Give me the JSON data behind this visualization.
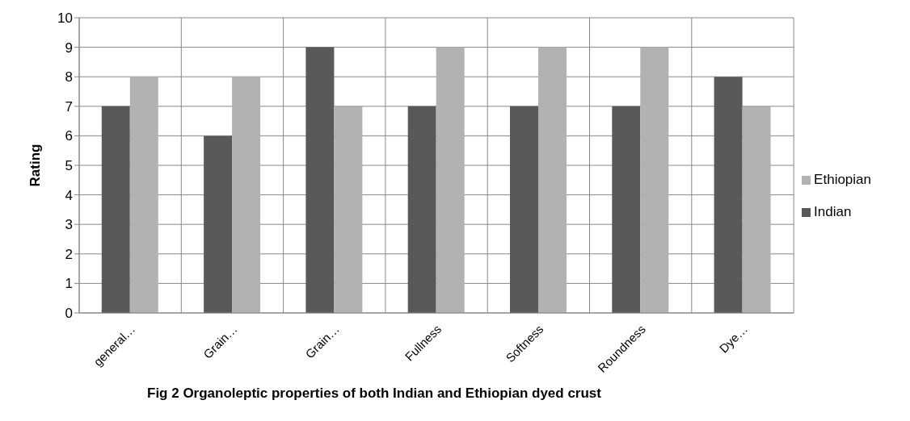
{
  "chart_data": {
    "type": "bar",
    "title": "Fig 2   Organoleptic properties of both Indian and Ethiopian dyed crust",
    "ylabel": "Rating",
    "categories": [
      "general…",
      "Grain…",
      "Grain…",
      "Fullness",
      "Softness",
      "Roundness",
      "Dye…"
    ],
    "series": [
      {
        "name": "Indian",
        "color": "#595959",
        "values": [
          7,
          6,
          9,
          7,
          7,
          7,
          8
        ]
      },
      {
        "name": "Ethiopian",
        "color": "#b2b2b2",
        "values": [
          8,
          8,
          7,
          9,
          9,
          9,
          7
        ]
      }
    ],
    "ylim": [
      0,
      10
    ],
    "yticks": [
      0,
      1,
      2,
      3,
      4,
      5,
      6,
      7,
      8,
      9,
      10
    ],
    "grid": true,
    "legend": "right"
  }
}
